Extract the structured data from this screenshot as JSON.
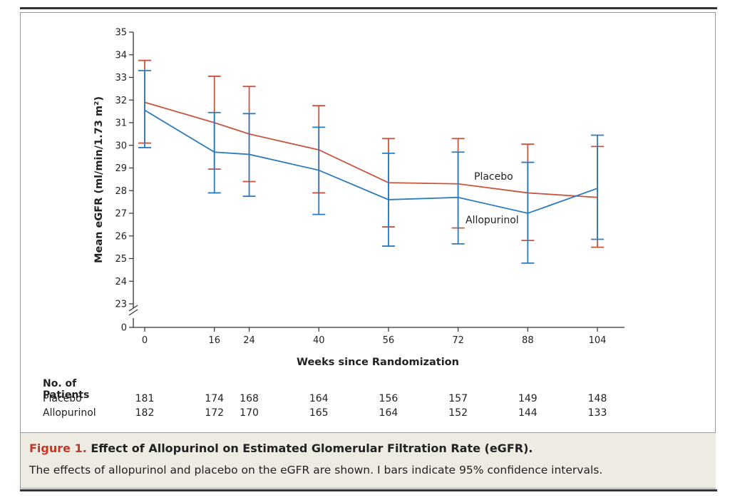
{
  "chart_data": {
    "type": "line",
    "ylabel": "Mean eGFR (ml/min/1.73 m²)",
    "xlabel": "Weeks since Randomization",
    "x": [
      0,
      16,
      24,
      40,
      56,
      72,
      88,
      104
    ],
    "ylim": [
      23,
      35
    ],
    "y_ticks": [
      35,
      34,
      33,
      32,
      31,
      30,
      29,
      28,
      27,
      26,
      25,
      24,
      23
    ],
    "y_zero_label": "0",
    "series": [
      {
        "name": "Placebo",
        "color": "#c8553d",
        "values": [
          31.9,
          31.0,
          30.5,
          29.8,
          28.35,
          28.3,
          27.9,
          27.7
        ],
        "ci_low": [
          30.1,
          28.95,
          28.4,
          27.9,
          26.4,
          26.35,
          25.8,
          25.5
        ],
        "ci_high": [
          33.75,
          33.05,
          32.6,
          31.75,
          30.3,
          30.3,
          30.05,
          29.95
        ]
      },
      {
        "name": "Allopurinol",
        "color": "#2b7bbf",
        "values": [
          31.55,
          29.7,
          29.6,
          28.9,
          27.6,
          27.7,
          27.0,
          28.1
        ],
        "ci_low": [
          29.9,
          27.9,
          27.75,
          26.95,
          25.55,
          25.65,
          24.8,
          25.85
        ],
        "ci_high": [
          33.3,
          31.45,
          31.4,
          30.8,
          29.65,
          29.7,
          29.25,
          30.45
        ]
      }
    ]
  },
  "patients": {
    "title": "No. of Patients",
    "rows": [
      {
        "label": "Placebo",
        "values": [
          "181",
          "174",
          "168",
          "164",
          "156",
          "157",
          "149",
          "148"
        ]
      },
      {
        "label": "Allopurinol",
        "values": [
          "182",
          "172",
          "170",
          "165",
          "164",
          "152",
          "144",
          "133"
        ]
      }
    ]
  },
  "caption": {
    "figure_label": "Figure 1.",
    "title": " Effect of Allopurinol on Estimated Glomerular Filtration Rate (eGFR).",
    "body": "The effects of allopurinol and placebo on the eGFR are shown. I bars indicate 95% confidence intervals."
  }
}
